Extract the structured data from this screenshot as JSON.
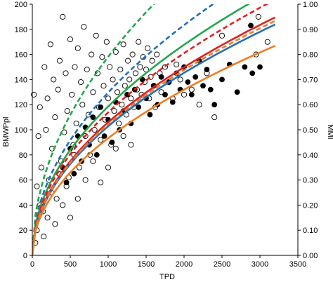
{
  "chart_data": {
    "type": "scatter",
    "title": "",
    "xlabel": "TPD",
    "ylabel": "BMWPpl",
    "y2label": "MMI",
    "xlim": [
      0,
      3500
    ],
    "ylim": [
      0,
      200
    ],
    "y2lim": [
      0,
      1.0
    ],
    "grid": false,
    "legend": "none",
    "x_ticks": [
      "0",
      "500",
      "1000",
      "1500",
      "2000",
      "2500",
      "3000",
      "3500"
    ],
    "y_ticks": [
      "0",
      "20",
      "40",
      "60",
      "80",
      "100",
      "120",
      "140",
      "160",
      "180",
      "200"
    ],
    "y2_ticks": [
      "0.00",
      "0.10",
      "0.20",
      "0.30",
      "0.40",
      "0.50",
      "0.60",
      "0.70",
      "0.80",
      "0.90",
      "1.00"
    ],
    "scatter_open": {
      "style": "open-circle",
      "points": [
        [
          20,
          128
        ],
        [
          40,
          10
        ],
        [
          60,
          55
        ],
        [
          80,
          95
        ],
        [
          100,
          118
        ],
        [
          120,
          70
        ],
        [
          140,
          35
        ],
        [
          160,
          150
        ],
        [
          180,
          100
        ],
        [
          200,
          125
        ],
        [
          220,
          60
        ],
        [
          240,
          168
        ],
        [
          260,
          85
        ],
        [
          280,
          140
        ],
        [
          300,
          110
        ],
        [
          320,
          45
        ],
        [
          340,
          132
        ],
        [
          360,
          155
        ],
        [
          380,
          75
        ],
        [
          400,
          190
        ],
        [
          420,
          98
        ],
        [
          440,
          145
        ],
        [
          460,
          115
        ],
        [
          480,
          62
        ],
        [
          500,
          172
        ],
        [
          520,
          128
        ],
        [
          540,
          88
        ],
        [
          560,
          150
        ],
        [
          580,
          105
        ],
        [
          600,
          165
        ],
        [
          620,
          70
        ],
        [
          640,
          138
        ],
        [
          660,
          120
        ],
        [
          680,
          182
        ],
        [
          700,
          95
        ],
        [
          720,
          148
        ],
        [
          740,
          112
        ],
        [
          760,
          80
        ],
        [
          780,
          160
        ],
        [
          800,
          130
        ],
        [
          820,
          100
        ],
        [
          840,
          175
        ],
        [
          860,
          145
        ],
        [
          880,
          118
        ],
        [
          900,
          92
        ],
        [
          920,
          158
        ],
        [
          940,
          135
        ],
        [
          960,
          108
        ],
        [
          980,
          170
        ],
        [
          1000,
          125
        ],
        [
          1020,
          150
        ],
        [
          1040,
          88
        ],
        [
          1060,
          140
        ],
        [
          1080,
          115
        ],
        [
          1100,
          162
        ],
        [
          1120,
          130
        ],
        [
          1140,
          105
        ],
        [
          1160,
          148
        ],
        [
          1180,
          120
        ],
        [
          1200,
          168
        ],
        [
          1220,
          135
        ],
        [
          1240,
          112
        ],
        [
          1260,
          155
        ],
        [
          1280,
          140
        ],
        [
          1300,
          125
        ],
        [
          1320,
          160
        ],
        [
          1340,
          118
        ],
        [
          1360,
          145
        ],
        [
          1380,
          132
        ],
        [
          1400,
          170
        ],
        [
          1420,
          150
        ],
        [
          1440,
          128
        ],
        [
          1460,
          158
        ],
        [
          1480,
          138
        ],
        [
          1500,
          148
        ],
        [
          1520,
          165
        ],
        [
          1540,
          125
        ],
        [
          1560,
          142
        ],
        [
          1580,
          155
        ],
        [
          1600,
          135
        ],
        [
          1620,
          118
        ],
        [
          1640,
          160
        ],
        [
          1680,
          145
        ],
        [
          1700,
          130
        ],
        [
          1750,
          150
        ],
        [
          1800,
          138
        ],
        [
          1850,
          125
        ],
        [
          1900,
          152
        ],
        [
          1950,
          140
        ],
        [
          2000,
          128
        ],
        [
          2100,
          132
        ],
        [
          2200,
          120
        ],
        [
          2300,
          145
        ],
        [
          2400,
          110
        ],
        [
          2500,
          175
        ],
        [
          2950,
          160
        ],
        [
          2980,
          190
        ],
        [
          3100,
          170
        ],
        [
          60,
          20
        ],
        [
          100,
          40
        ],
        [
          150,
          15
        ],
        [
          200,
          30
        ],
        [
          250,
          50
        ],
        [
          300,
          25
        ],
        [
          350,
          65
        ],
        [
          400,
          40
        ],
        [
          450,
          55
        ],
        [
          500,
          30
        ],
        [
          550,
          80
        ],
        [
          600,
          45
        ],
        [
          700,
          60
        ],
        [
          800,
          75
        ],
        [
          900,
          58
        ],
        [
          1000,
          70
        ],
        [
          1100,
          85
        ],
        [
          1200,
          95
        ],
        [
          1300,
          88
        ]
      ]
    },
    "scatter_filled": {
      "style": "filled-circle",
      "points": [
        [
          400,
          70
        ],
        [
          450,
          58
        ],
        [
          500,
          85
        ],
        [
          550,
          65
        ],
        [
          600,
          95
        ],
        [
          650,
          75
        ],
        [
          700,
          102
        ],
        [
          750,
          88
        ],
        [
          800,
          110
        ],
        [
          850,
          80
        ],
        [
          900,
          118
        ],
        [
          950,
          95
        ],
        [
          1000,
          108
        ],
        [
          1050,
          90
        ],
        [
          1100,
          122
        ],
        [
          1150,
          100
        ],
        [
          1200,
          115
        ],
        [
          1250,
          128
        ],
        [
          1300,
          105
        ],
        [
          1350,
          132
        ],
        [
          1400,
          118
        ],
        [
          1450,
          140
        ],
        [
          1500,
          125
        ],
        [
          1550,
          112
        ],
        [
          1600,
          135
        ],
        [
          1650,
          120
        ],
        [
          1700,
          142
        ],
        [
          1750,
          128
        ],
        [
          1800,
          138
        ],
        [
          1850,
          122
        ],
        [
          1900,
          145
        ],
        [
          1950,
          132
        ],
        [
          2000,
          150
        ],
        [
          2050,
          138
        ],
        [
          2100,
          128
        ],
        [
          2150,
          142
        ],
        [
          2200,
          155
        ],
        [
          2250,
          135
        ],
        [
          2300,
          148
        ],
        [
          2350,
          132
        ],
        [
          2400,
          120
        ],
        [
          2500,
          140
        ],
        [
          2600,
          152
        ],
        [
          2700,
          130
        ],
        [
          2800,
          150
        ],
        [
          2900,
          145
        ],
        [
          3000,
          150
        ],
        [
          2880,
          183
        ]
      ]
    },
    "curves": [
      {
        "color": "#22a84b",
        "style": "dashed",
        "axis": "left",
        "a": 5.0,
        "b": 0.5
      },
      {
        "color": "#1f6fc0",
        "style": "dashed",
        "axis": "left",
        "a": 4.1,
        "b": 0.5
      },
      {
        "color": "#22a84b",
        "style": "solid",
        "axis": "left",
        "a": 3.75,
        "b": 0.5
      },
      {
        "color": "#e02020",
        "style": "dashed",
        "axis": "left",
        "a": 3.6,
        "b": 0.5
      },
      {
        "color": "#e02020",
        "style": "solid",
        "axis": "left",
        "a": 3.35,
        "b": 0.5
      },
      {
        "color": "#1f6fc0",
        "style": "solid",
        "axis": "left",
        "a": 3.25,
        "b": 0.5
      },
      {
        "color": "#f07c22",
        "style": "dashed",
        "axis": "left",
        "a": 3.3,
        "b": 0.5
      },
      {
        "color": "#f07c22",
        "style": "solid",
        "axis": "left",
        "a": 2.95,
        "b": 0.5
      }
    ]
  }
}
